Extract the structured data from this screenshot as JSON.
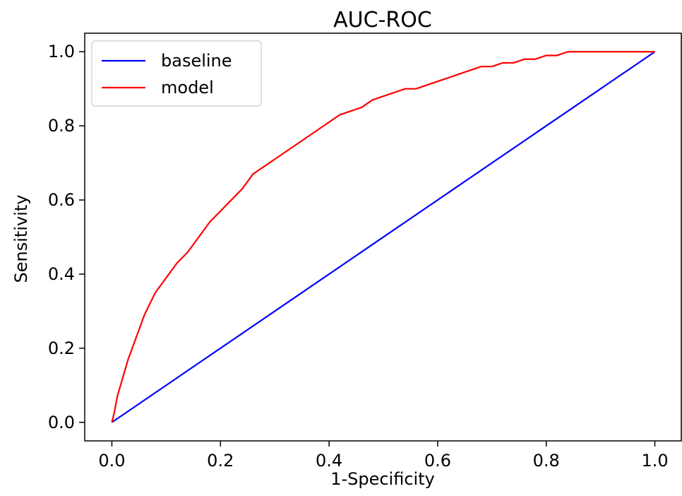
{
  "chart_data": {
    "type": "line",
    "title": "AUC-ROC",
    "xlabel": "1-Specificity",
    "ylabel": "Sensitivity",
    "xlim": [
      -0.05,
      1.05
    ],
    "ylim": [
      -0.05,
      1.05
    ],
    "xticks": [
      0.0,
      0.2,
      0.4,
      0.6,
      0.8,
      1.0
    ],
    "yticks": [
      0.0,
      0.2,
      0.4,
      0.6,
      0.8,
      1.0
    ],
    "xtick_labels": [
      "0.0",
      "0.2",
      "0.4",
      "0.6",
      "0.8",
      "1.0"
    ],
    "ytick_labels": [
      "0.0",
      "0.2",
      "0.4",
      "0.6",
      "0.8",
      "1.0"
    ],
    "grid": false,
    "legend": {
      "placement": "top-left",
      "entries": [
        "baseline",
        "model"
      ]
    },
    "series": [
      {
        "name": "baseline",
        "color": "#0000ff",
        "x": [
          0.0,
          1.0
        ],
        "y": [
          0.0,
          1.0
        ]
      },
      {
        "name": "model",
        "color": "#ff0000",
        "x": [
          0.0,
          0.005,
          0.01,
          0.02,
          0.03,
          0.04,
          0.05,
          0.06,
          0.07,
          0.08,
          0.09,
          0.1,
          0.12,
          0.14,
          0.16,
          0.18,
          0.2,
          0.22,
          0.24,
          0.26,
          0.28,
          0.3,
          0.32,
          0.34,
          0.36,
          0.38,
          0.4,
          0.42,
          0.44,
          0.46,
          0.48,
          0.5,
          0.52,
          0.54,
          0.56,
          0.58,
          0.6,
          0.62,
          0.64,
          0.66,
          0.68,
          0.7,
          0.72,
          0.74,
          0.76,
          0.78,
          0.8,
          0.82,
          0.84,
          0.86,
          0.9,
          0.95,
          1.0
        ],
        "y": [
          0.0,
          0.03,
          0.07,
          0.12,
          0.17,
          0.21,
          0.25,
          0.29,
          0.32,
          0.35,
          0.37,
          0.39,
          0.43,
          0.46,
          0.5,
          0.54,
          0.57,
          0.6,
          0.63,
          0.67,
          0.69,
          0.71,
          0.73,
          0.75,
          0.77,
          0.79,
          0.81,
          0.83,
          0.84,
          0.85,
          0.87,
          0.88,
          0.89,
          0.9,
          0.9,
          0.91,
          0.92,
          0.93,
          0.94,
          0.95,
          0.96,
          0.96,
          0.97,
          0.97,
          0.98,
          0.98,
          0.99,
          0.99,
          1.0,
          1.0,
          1.0,
          1.0,
          1.0
        ]
      }
    ]
  }
}
